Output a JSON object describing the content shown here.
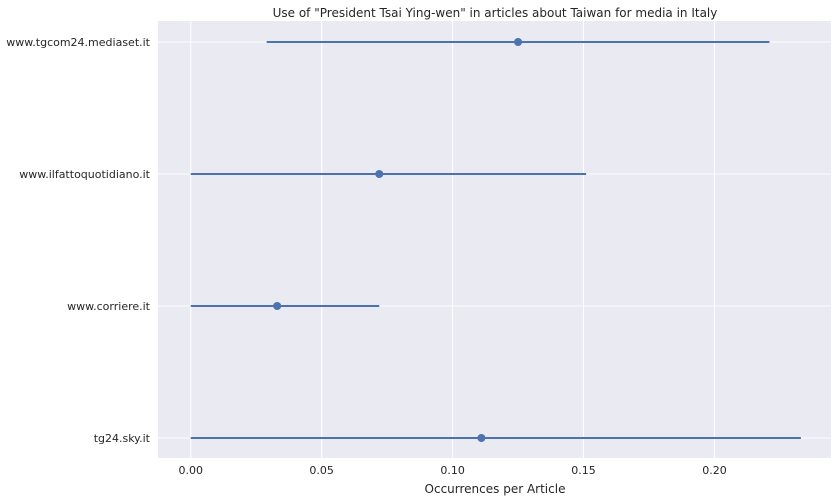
{
  "chart_data": {
    "type": "pointrange",
    "title": "Use of \"President Tsai Ying-wen\" in articles about Taiwan for media in Italy",
    "xlabel": "Occurrences per Article",
    "ylabel": "",
    "xlim": [
      -0.0125,
      0.2445
    ],
    "xticks": [
      0.0,
      0.05,
      0.1,
      0.15,
      0.2
    ],
    "xtick_labels": [
      "0.00",
      "0.05",
      "0.10",
      "0.15",
      "0.20"
    ],
    "grid": true,
    "background": "#eaeaf2",
    "series_color": "#4c72b0",
    "categories": [
      "www.tgcom24.mediaset.it",
      "www.ilfattoquotidiano.it",
      "www.corriere.it",
      "tg24.sky.it"
    ],
    "points": [
      {
        "category": "www.tgcom24.mediaset.it",
        "value": 0.125,
        "low": 0.029,
        "high": 0.221
      },
      {
        "category": "www.ilfattoquotidiano.it",
        "value": 0.072,
        "low": 0.0,
        "high": 0.151
      },
      {
        "category": "www.corriere.it",
        "value": 0.033,
        "low": 0.0,
        "high": 0.072
      },
      {
        "category": "tg24.sky.it",
        "value": 0.111,
        "low": 0.0,
        "high": 0.233
      }
    ]
  }
}
